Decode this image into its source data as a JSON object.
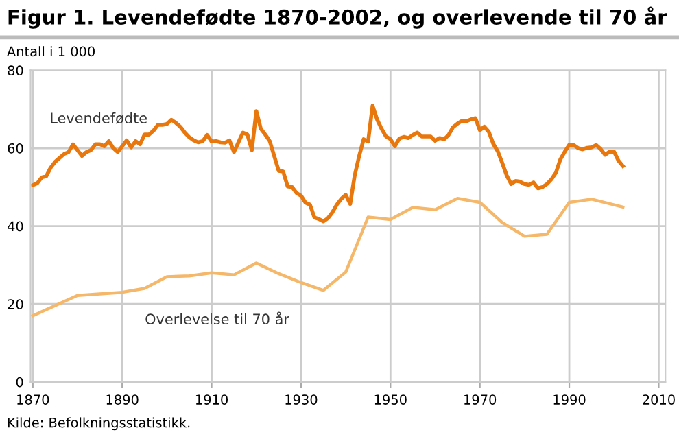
{
  "chart_data": {
    "type": "line",
    "title": "Figur 1. Levendefødte 1870-2002, og overlevende til 70 år",
    "ylabel": "Antall i 1 000",
    "annotations": [
      "Kilde: Befolkningsstatistikk."
    ],
    "series": [
      {
        "name": "Levendefødte",
        "color": "#e8780e",
        "x": [
          1870,
          1871,
          1872,
          1873,
          1874,
          1875,
          1876,
          1877,
          1878,
          1879,
          1880,
          1881,
          1882,
          1883,
          1884,
          1885,
          1886,
          1887,
          1888,
          1889,
          1890,
          1891,
          1892,
          1893,
          1894,
          1895,
          1896,
          1897,
          1898,
          1899,
          1900,
          1901,
          1902,
          1903,
          1904,
          1905,
          1906,
          1907,
          1908,
          1909,
          1910,
          1911,
          1912,
          1913,
          1914,
          1915,
          1916,
          1917,
          1918,
          1919,
          1920,
          1921,
          1922,
          1923,
          1924,
          1925,
          1926,
          1927,
          1928,
          1929,
          1930,
          1931,
          1932,
          1933,
          1934,
          1935,
          1936,
          1937,
          1938,
          1939,
          1940,
          1941,
          1942,
          1943,
          1944,
          1945,
          1946,
          1947,
          1948,
          1949,
          1950,
          1951,
          1952,
          1953,
          1954,
          1955,
          1956,
          1957,
          1958,
          1959,
          1960,
          1961,
          1962,
          1963,
          1964,
          1965,
          1966,
          1967,
          1968,
          1969,
          1970,
          1971,
          1972,
          1973,
          1974,
          1975,
          1976,
          1977,
          1978,
          1979,
          1980,
          1981,
          1982,
          1983,
          1984,
          1985,
          1986,
          1987,
          1988,
          1989,
          1990,
          1991,
          1992,
          1993,
          1994,
          1995,
          1996,
          1997,
          1998,
          1999,
          2000,
          2001,
          2002
        ],
        "values": [
          50.5,
          51,
          52.5,
          52.8,
          55,
          56.5,
          57.5,
          58.5,
          59,
          61,
          59.5,
          58,
          59,
          59.5,
          61,
          61,
          60.5,
          61.8,
          60,
          59,
          60.5,
          62,
          60.2,
          61.8,
          61,
          63.5,
          63.5,
          64.5,
          66,
          66,
          66.2,
          67.3,
          66.5,
          65.5,
          64,
          62.8,
          62,
          61.5,
          61.8,
          63.4,
          61.7,
          61.8,
          61.5,
          61.4,
          62,
          59,
          61.5,
          64,
          63.5,
          59.5,
          69.5,
          65,
          63.5,
          61.8,
          58,
          54.2,
          54,
          50.2,
          50,
          48.5,
          47.8,
          46,
          45.5,
          42.2,
          41.8,
          41.2,
          42,
          43.5,
          45.5,
          47,
          48,
          45.7,
          53,
          58,
          62.3,
          61.7,
          70.9,
          67.4,
          65,
          63,
          62.3,
          60.5,
          62.5,
          62.9,
          62.6,
          63.4,
          64,
          63,
          63,
          63,
          61.9,
          62.6,
          62.3,
          63.4,
          65.4,
          66.3,
          67,
          66.9,
          67.4,
          67.7,
          64.6,
          65.5,
          64.2,
          61.1,
          59.2,
          56.2,
          53,
          50.8,
          51.6,
          51.4,
          50.8,
          50.6,
          51.2,
          49.7,
          50,
          50.8,
          52,
          53.7,
          57.1,
          59.1,
          60.9,
          60.8,
          60,
          59.7,
          60.1,
          60.2,
          60.8,
          59.8,
          58.3,
          59.1,
          59.1,
          56.8,
          55.4
        ]
      },
      {
        "name": "Overlevelse til 70 år",
        "color": "#f5b76a",
        "x": [
          1870,
          1880,
          1890,
          1895,
          1900,
          1905,
          1910,
          1915,
          1920,
          1925,
          1930,
          1935,
          1940,
          1945,
          1950,
          1955,
          1960,
          1965,
          1970,
          1975,
          1980,
          1985,
          1990,
          1995,
          2002
        ],
        "values": [
          17,
          22.2,
          23,
          24,
          27,
          27.2,
          28,
          27.5,
          30.5,
          27.8,
          25.5,
          23.5,
          28.2,
          42.3,
          41.7,
          44.8,
          44.2,
          47.1,
          46.1,
          40.9,
          37.4,
          37.9,
          46.1,
          46.9,
          44.9
        ]
      }
    ],
    "xlim": [
      1869.5,
      2011.5
    ],
    "xticks": [
      1870,
      1890,
      1910,
      1930,
      1950,
      1970,
      1990,
      2010
    ],
    "ylim": [
      0,
      80
    ],
    "yticks": [
      0,
      20,
      40,
      60,
      80
    ],
    "grid": true,
    "legend": false
  }
}
